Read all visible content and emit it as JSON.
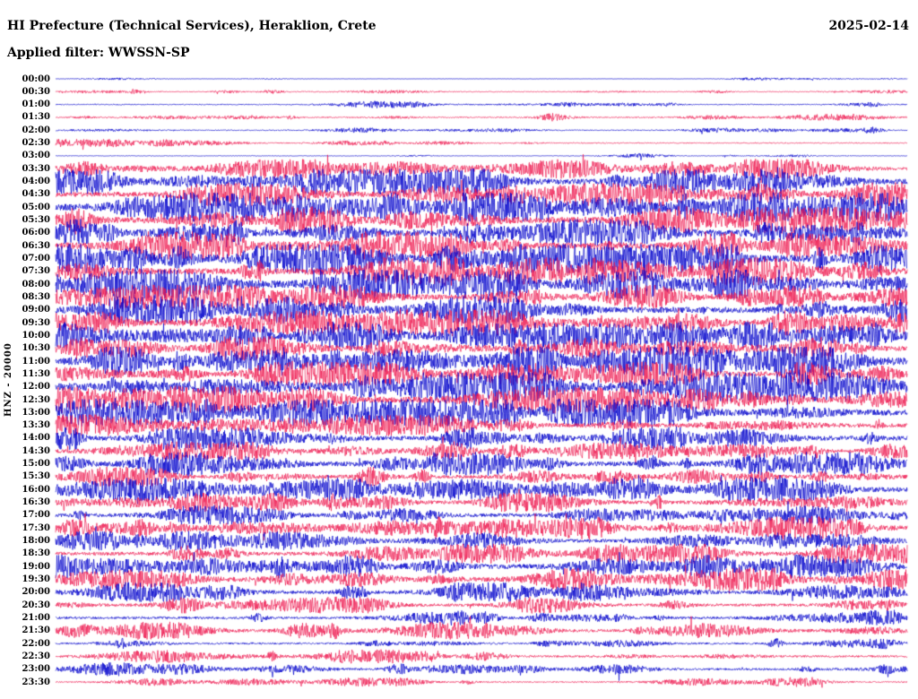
{
  "header": {
    "title": "HI Prefecture (Technical Services), Heraklion, Crete",
    "date": "2025-02-14",
    "filter_label": "Applied filter: WWSSN-SP"
  },
  "y_axis_label": "HNZ - 20000",
  "chart_data": {
    "type": "line",
    "subtype": "helicorder-seismogram",
    "title": "HI Prefecture (Technical Services), Heraklion, Crete",
    "date": "2025-02-14",
    "filter": "WWSSN-SP",
    "channel": "HNZ",
    "scale": "20000",
    "trace_interval_minutes": 30,
    "x_range_minutes": [
      0,
      30
    ],
    "legend_position": "none",
    "grid": false,
    "row_colors_alternate": [
      "#0000cc",
      "#ee1a50"
    ],
    "row_labels": [
      "00:00",
      "00:30",
      "01:00",
      "01:30",
      "02:00",
      "02:30",
      "03:00",
      "03:30",
      "04:00",
      "04:30",
      "05:00",
      "05:30",
      "06:00",
      "06:30",
      "07:00",
      "07:30",
      "08:00",
      "08:30",
      "09:00",
      "09:30",
      "10:00",
      "10:30",
      "11:00",
      "11:30",
      "12:00",
      "12:30",
      "13:00",
      "13:30",
      "14:00",
      "14:30",
      "15:00",
      "15:30",
      "16:00",
      "16:30",
      "17:00",
      "17:30",
      "18:00",
      "18:30",
      "19:00",
      "19:30",
      "20:00",
      "20:30",
      "21:00",
      "21:30",
      "22:00",
      "22:30",
      "23:00",
      "23:30"
    ],
    "row_amplitudes": [
      0.07,
      0.15,
      0.2,
      0.22,
      0.18,
      0.2,
      0.12,
      0.5,
      0.65,
      0.6,
      0.8,
      0.7,
      0.7,
      0.72,
      0.8,
      0.72,
      0.8,
      0.62,
      0.7,
      0.7,
      0.72,
      0.62,
      0.8,
      0.62,
      0.8,
      0.7,
      0.7,
      0.55,
      0.6,
      0.5,
      0.6,
      0.5,
      0.6,
      0.5,
      0.5,
      0.6,
      0.5,
      0.5,
      0.6,
      0.6,
      0.5,
      0.42,
      0.4,
      0.45,
      0.3,
      0.35,
      0.35,
      0.25
    ],
    "row_amplitude_note": "relative trace amplitude per 30-min row, estimated 0-1"
  }
}
